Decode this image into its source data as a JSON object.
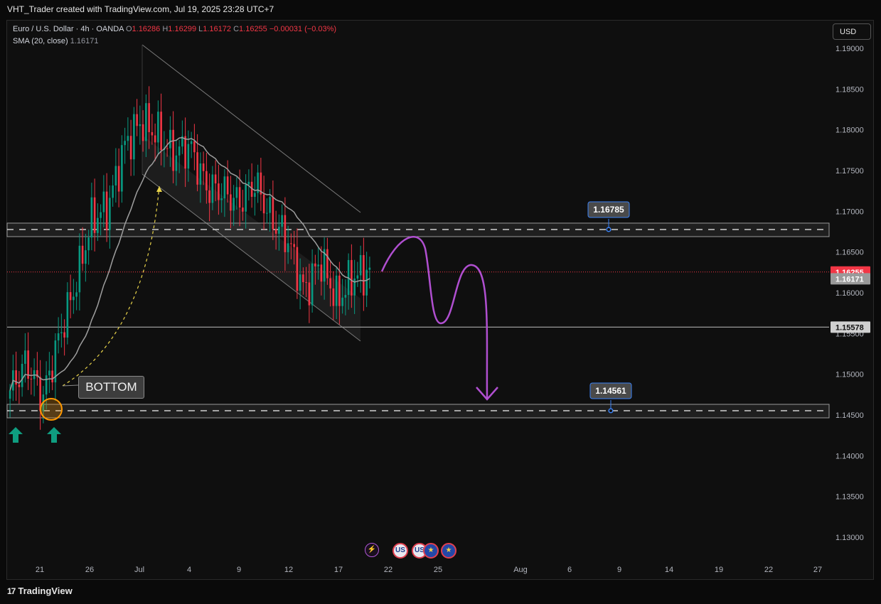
{
  "header": {
    "title": "VHT_Trader created with TradingView.com, Jul 19, 2025 23:28 UTC+7"
  },
  "legend": {
    "symbol": "Euro / U.S. Dollar · 4h · OANDA",
    "o_label": "O",
    "o_value": "1.16286",
    "h_label": "H",
    "h_value": "1.16299",
    "l_label": "L",
    "l_value": "1.16172",
    "c_label": "C",
    "c_value": "1.16255",
    "change": "−0.00031 (−0.03%)",
    "sma_label": "SMA (20, close)",
    "sma_value": "1.16171"
  },
  "currency_button": "USD",
  "price_axis": {
    "ticks": [
      "1.19000",
      "1.18500",
      "1.18000",
      "1.17500",
      "1.17000",
      "1.16500",
      "1.16000",
      "1.15500",
      "1.15000",
      "1.14500",
      "1.14000",
      "1.13500",
      "1.13000"
    ],
    "tick_values": [
      1.19,
      1.185,
      1.18,
      1.175,
      1.17,
      1.165,
      1.16,
      1.155,
      1.15,
      1.145,
      1.14,
      1.135,
      1.13
    ],
    "labels": [
      {
        "text": "1.16255",
        "value": 1.16255,
        "color": "#f23645"
      },
      {
        "text": "1.16171",
        "value": 1.16171,
        "color": "#9a9a9a"
      },
      {
        "text": "1.15578",
        "value": 1.15578,
        "color": "#d0d0d0"
      }
    ]
  },
  "time_axis": {
    "ticks": [
      "21",
      "26",
      "Jul",
      "4",
      "9",
      "12",
      "14",
      "17",
      "22",
      "25",
      "Aug",
      "6",
      "9",
      "14",
      "19",
      "22",
      "27"
    ]
  },
  "annotations": {
    "bottom_label": "BOTTOM",
    "resistance_label": "1.16785",
    "resistance_value": 1.16785,
    "support_label": "1.14561",
    "support_value": 1.14561,
    "horizontal_line_value": 1.15578
  },
  "events": [
    {
      "icon": "lightning-icon",
      "text": "⚡"
    },
    {
      "icon": "us-flag-icon",
      "text": "US"
    },
    {
      "icon": "us-flag-icon",
      "text": "US"
    },
    {
      "icon": "eu-flag-icon",
      "text": "★"
    },
    {
      "icon": "eu-flag-icon",
      "text": "★"
    }
  ],
  "footer": {
    "brand": "TradingView",
    "brand_mark": "17"
  },
  "colors": {
    "up": "#089981",
    "down": "#f23645",
    "sma": "#9e9e9e",
    "projection": "#b04fd0",
    "arrow_green": "#0f9d80",
    "bottom_circle": "#ff9800",
    "dashed_curve": "#e8d34a"
  },
  "chart_data": {
    "type": "candlestick",
    "symbol": "EURUSD",
    "timeframe": "4h",
    "ylim": [
      1.126,
      1.194
    ],
    "last_close": 1.16255,
    "sma20_last": 1.16171,
    "trend_path": [
      {
        "date": "Jun 18",
        "close": 1.148
      },
      {
        "date": "Jun 20",
        "close": 1.1515
      },
      {
        "date": "Jun 21",
        "close": 1.147
      },
      {
        "date": "Jun 23",
        "close": 1.1545
      },
      {
        "date": "Jun 24",
        "close": 1.161
      },
      {
        "date": "Jun 26",
        "close": 1.169
      },
      {
        "date": "Jun 27",
        "close": 1.1705
      },
      {
        "date": "Jun 30",
        "close": 1.178
      },
      {
        "date": "Jul 1",
        "close": 1.181
      },
      {
        "date": "Jul 2",
        "close": 1.1795
      },
      {
        "date": "Jul 3",
        "close": 1.177
      },
      {
        "date": "Jul 4",
        "close": 1.178
      },
      {
        "date": "Jul 7",
        "close": 1.173
      },
      {
        "date": "Jul 8",
        "close": 1.1725
      },
      {
        "date": "Jul 9",
        "close": 1.171
      },
      {
        "date": "Jul 10",
        "close": 1.1735
      },
      {
        "date": "Jul 11",
        "close": 1.169
      },
      {
        "date": "Jul 14",
        "close": 1.1665
      },
      {
        "date": "Jul 15",
        "close": 1.16
      },
      {
        "date": "Jul 16",
        "close": 1.164
      },
      {
        "date": "Jul 17",
        "close": 1.159
      },
      {
        "date": "Jul 18",
        "close": 1.162
      },
      {
        "date": "Jul 19",
        "close": 1.16255
      }
    ]
  }
}
